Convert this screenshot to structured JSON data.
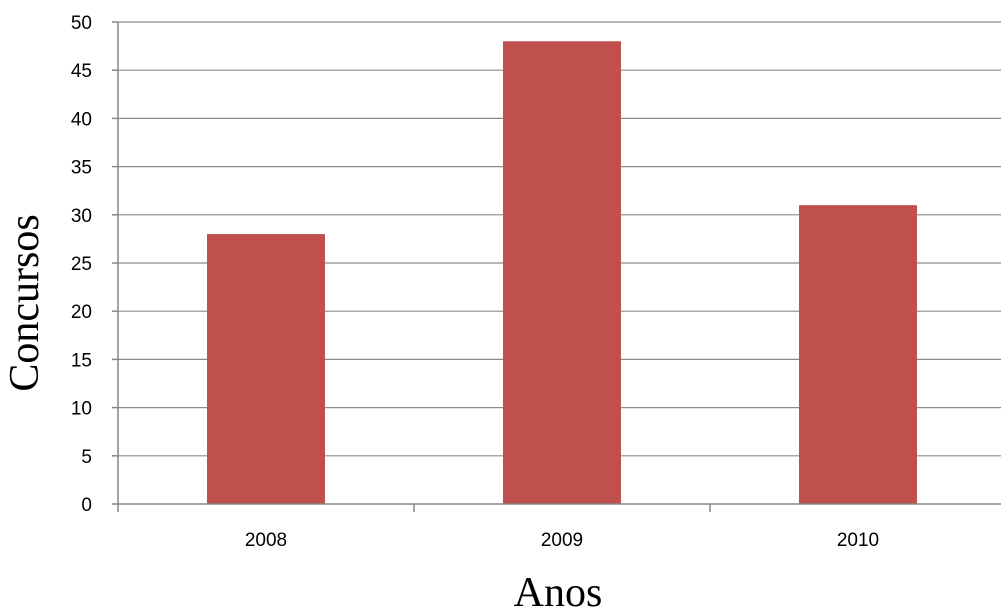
{
  "chart_data": {
    "type": "bar",
    "title": "",
    "xlabel": "Anos",
    "ylabel": "Concursos",
    "categories": [
      "2008",
      "2009",
      "2010"
    ],
    "series": [
      {
        "values": [
          28,
          48,
          31
        ]
      }
    ],
    "ylim": [
      0,
      50
    ],
    "yticks": [
      "0",
      "5",
      "10",
      "15",
      "20",
      "25",
      "30",
      "35",
      "40",
      "45",
      "50"
    ],
    "grid": true,
    "legend": "none",
    "bar_color": "#C0504D",
    "grid_color": "#8C8C8C",
    "axis_color": "#868686"
  }
}
